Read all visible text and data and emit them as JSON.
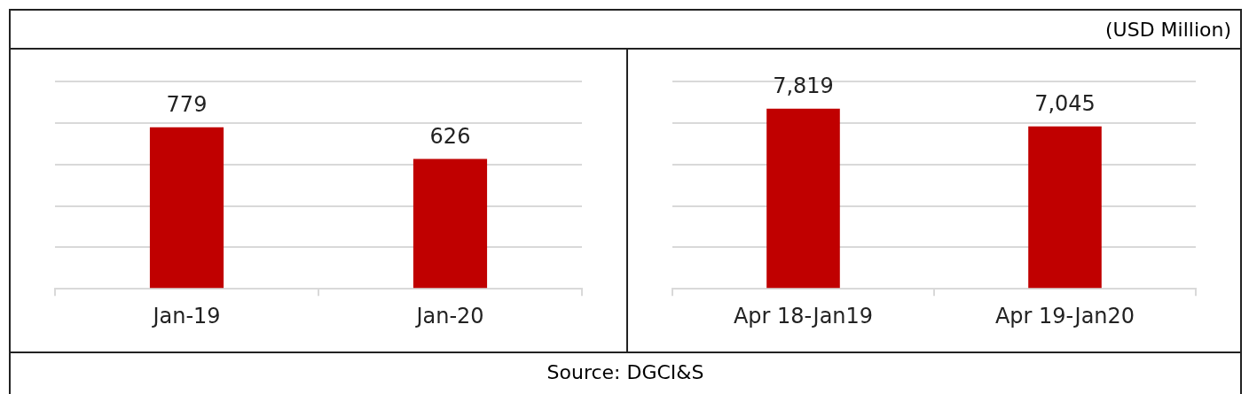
{
  "chart_data": [
    {
      "type": "bar",
      "categories": [
        "Jan-19",
        "Jan-20"
      ],
      "values": [
        779,
        626
      ],
      "value_labels": [
        "779",
        "626"
      ],
      "color": "#c00000",
      "ylim": [
        0,
        1000
      ],
      "yticks": [
        {
          "value": 0,
          "label": null
        },
        {
          "value": 200,
          "label": null
        },
        {
          "value": 400,
          "label": null
        },
        {
          "value": 600,
          "label": null
        },
        {
          "value": 800,
          "label": null
        },
        {
          "value": 1000,
          "label": null
        }
      ],
      "grid": "y",
      "tick_labels": "x",
      "legend": false,
      "annotations": [
        "(USD Million)",
        "Source: DGCI&S"
      ]
    },
    {
      "type": "bar",
      "categories": [
        "Apr 18-Jan19",
        "Apr 19-Jan20"
      ],
      "values": [
        7819,
        7045
      ],
      "value_labels": [
        "7,819",
        "7,045"
      ],
      "color": "#c00000",
      "ylim": [
        0,
        9000
      ],
      "yticks": [
        {
          "value": 0,
          "label": null
        },
        {
          "value": 1800,
          "label": null
        },
        {
          "value": 3600,
          "label": null
        },
        {
          "value": 5400,
          "label": null
        },
        {
          "value": 7200,
          "label": null
        },
        {
          "value": 9000,
          "label": null
        }
      ],
      "grid": "y",
      "tick_labels": "x",
      "legend": false
    }
  ]
}
